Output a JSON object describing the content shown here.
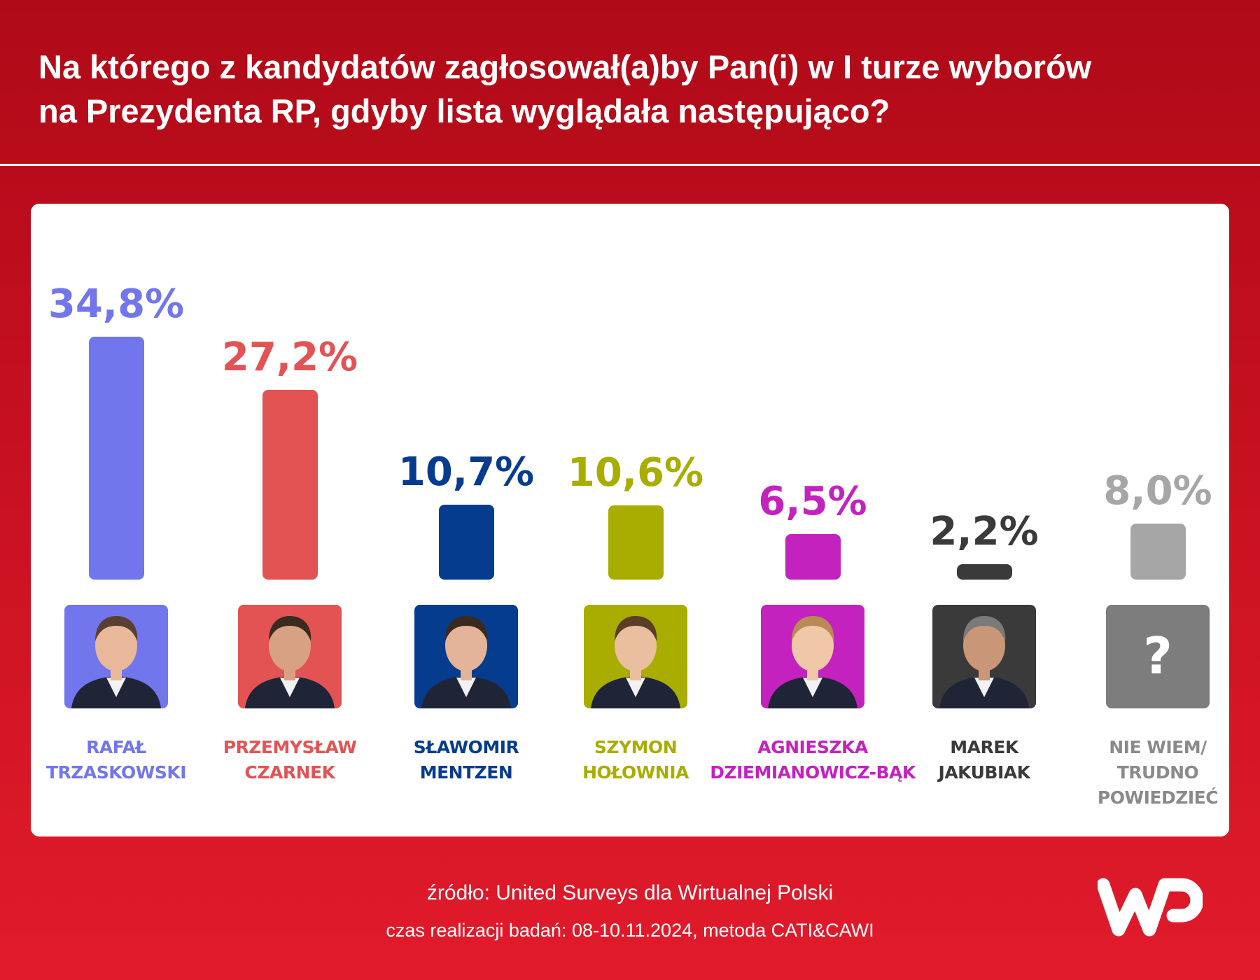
{
  "title": {
    "line1": "Na którego z kandydatów zagłosował(a)by Pan(i) w I turze wyborów",
    "line2": "na Prezydenta RP, gdyby lista wyglądała następująco?"
  },
  "footer": {
    "source": "źródło: United Surveys dla Wirtualnej Polski",
    "period": "czas realizacji badań: 08-10.11.2024, metoda CATI&CAWI"
  },
  "logo": {
    "icon": "wp-logo",
    "text": "WP"
  },
  "chart_data": {
    "type": "bar",
    "title": "Na którego z kandydatów zagłosował(a)by Pan(i) w I turze wyborów na Prezydenta RP, gdyby lista wyglądała następująco?",
    "xlabel": "",
    "ylabel": "",
    "unit": "%",
    "ylim": [
      0,
      34.8
    ],
    "grid": false,
    "legend": "none",
    "categories": [
      "RAFAŁ TRZASKOWSKI",
      "PRZEMYSŁAW CZARNEK",
      "SŁAWOMIR MENTZEN",
      "SZYMON HOŁOWNIA",
      "AGNIESZKA DZIEMIANOWICZ-BĄK",
      "MAREK JAKUBIAK",
      "NIE WIEM/ TRUDNO POWIEDZIEĆ"
    ],
    "values": [
      34.8,
      27.2,
      10.7,
      10.6,
      6.5,
      2.2,
      8.0
    ],
    "items": [
      {
        "name_lines": [
          "RAFAŁ",
          "TRZASKOWSKI"
        ],
        "value": 34.8,
        "label": "34,8%",
        "color": "#7276ec",
        "photo": "candidate-photo"
      },
      {
        "name_lines": [
          "PRZEMYSŁAW",
          "CZARNEK"
        ],
        "value": 27.2,
        "label": "27,2%",
        "color": "#e35354",
        "photo": "candidate-photo"
      },
      {
        "name_lines": [
          "SŁAWOMIR",
          "MENTZEN"
        ],
        "value": 10.7,
        "label": "10,7%",
        "color": "#063c8d",
        "photo": "candidate-photo"
      },
      {
        "name_lines": [
          "SZYMON",
          "HOŁOWNIA"
        ],
        "value": 10.6,
        "label": "10,6%",
        "color": "#a8ad00",
        "photo": "candidate-photo"
      },
      {
        "name_lines": [
          "AGNIESZKA",
          "DZIEMIANOWICZ-BĄK"
        ],
        "value": 6.5,
        "label": "6,5%",
        "color": "#c322bf",
        "photo": "candidate-photo"
      },
      {
        "name_lines": [
          "MAREK",
          "JAKUBIAK"
        ],
        "value": 2.2,
        "label": "2,2%",
        "color": "#3a3a3a",
        "photo": "candidate-photo"
      },
      {
        "name_lines": [
          "NIE WIEM/",
          "TRUDNO",
          "POWIEDZIEĆ"
        ],
        "value": 8.0,
        "label": "8,0%",
        "color": "#a6a6a6",
        "photo": "question-mark-icon",
        "photo_bg": "#7d7d7d",
        "glyph": "?"
      }
    ]
  }
}
